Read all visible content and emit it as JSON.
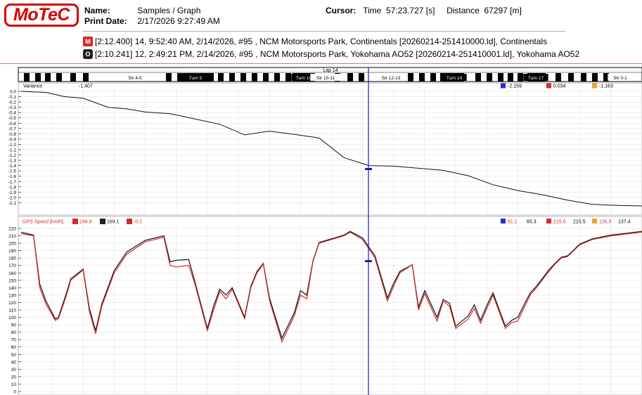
{
  "header": {
    "logo_text": "MoTeC",
    "name_label": "Name:",
    "name_value": "Samples / Graph",
    "print_label": "Print Date:",
    "print_value": "2/17/2026 9:27:49 AM",
    "cursor_label": "Cursor:",
    "time_label": "Time",
    "time_value": "57:23.727 [s]",
    "distance_label": "Distance",
    "distance_value": "67297 [m]"
  },
  "sessions": [
    {
      "badge": "M",
      "text": "[2:12.400] 14, 9:52:40 AM, 2/14/2026, #95 , NCM Motorsports Park, Continentals [20260214-251410000.ld], Continentals",
      "color": "#d42a2a"
    },
    {
      "badge": "O",
      "text": "[2:10.241] 12, 2:49:21 PM, 2/14/2026, #95 , NCM Motorsports Park, Yokohama AO52 [20260214-251410001.ld], Yokohama AO52",
      "color": "#222222"
    }
  ],
  "track": {
    "lap_label": "Lap 14",
    "segments": [
      "Str 4-5",
      "Turn 5",
      "Turn 10",
      "Str 10-11",
      "Str 12-13",
      "Turn 14",
      "Turn 17",
      "Str 0-1"
    ]
  },
  "colors": {
    "red": "#d42a2a",
    "black": "#111111",
    "cursor": "#1a1ac8",
    "grid": "#dcdcdc"
  },
  "chart_data": [
    {
      "type": "line",
      "channel": "Variance",
      "value_at_cursor": "-1.407",
      "readouts": {
        "min": "-2.159",
        "max": "0.034",
        "delta": "-1.163"
      },
      "ylim": [
        -2.2,
        0.0
      ],
      "yticks": [
        "0.0",
        "-0.1",
        "-0.2",
        "-0.3",
        "-0.4",
        "-0.5",
        "-0.6",
        "-0.7",
        "-0.8",
        "-0.9",
        "-1.0",
        "-1.1",
        "-1.2",
        "-1.3",
        "-1.4",
        "-1.5",
        "-1.6",
        "-1.7",
        "-1.8",
        "-1.9",
        "-2.0",
        "-2.1"
      ],
      "x": [
        0,
        4,
        7,
        10,
        14,
        17,
        20,
        24,
        28,
        32,
        36,
        40,
        44,
        48,
        52,
        56,
        60,
        64,
        68,
        72,
        76,
        80,
        84,
        88,
        92,
        96,
        100
      ],
      "y": [
        0.0,
        -0.02,
        -0.1,
        -0.13,
        -0.3,
        -0.33,
        -0.39,
        -0.42,
        -0.52,
        -0.62,
        -0.82,
        -0.75,
        -0.81,
        -0.88,
        -1.25,
        -1.4,
        -1.41,
        -1.45,
        -1.49,
        -1.59,
        -1.76,
        -1.87,
        -1.95,
        -2.05,
        -2.13,
        -2.15,
        -2.16
      ]
    },
    {
      "type": "line",
      "channel": "GPS Speed [km/h]",
      "legend": [
        {
          "badge": "M",
          "value": "168.9"
        },
        {
          "badge": "O",
          "value": "169.1"
        },
        {
          "badge": "Δ",
          "value": "-0.2"
        }
      ],
      "readouts": {
        "min_red": "61.1",
        "min_black": "65.3",
        "max_red": "215.0",
        "max_black": "215.5",
        "delta_red": "135.5",
        "delta_black": "137.4"
      },
      "ylim": [
        0,
        220
      ],
      "yticks": [
        "220",
        "210",
        "200",
        "190",
        "180",
        "170",
        "160",
        "150",
        "140",
        "130",
        "120",
        "110",
        "100",
        "90",
        "80",
        "70",
        "60",
        "50",
        "40",
        "30",
        "20",
        "10",
        "0"
      ],
      "x": [
        0,
        2,
        3,
        4,
        5.5,
        6,
        7,
        7.5,
        8,
        10,
        11,
        12,
        13,
        15,
        17,
        20,
        23,
        24,
        25,
        27,
        28,
        30,
        31,
        32,
        33,
        34,
        36,
        37,
        38,
        39,
        40,
        42,
        44,
        45,
        46,
        47,
        48,
        50,
        52,
        53,
        55,
        57,
        59,
        60,
        61,
        63,
        64,
        65,
        67,
        68,
        69,
        70,
        72,
        73,
        74,
        75,
        76,
        78,
        79,
        80,
        81,
        82,
        83,
        85,
        86,
        87,
        88,
        89,
        90,
        92,
        95,
        98,
        100
      ],
      "series": [
        {
          "name": "Continentals",
          "color": "#d42a2a",
          "values": [
            213,
            210,
            140,
            118,
            96,
            98,
            122,
            135,
            150,
            164,
            108,
            78,
            115,
            160,
            185,
            202,
            208,
            170,
            168,
            170,
            145,
            82,
            110,
            135,
            125,
            138,
            98,
            140,
            160,
            172,
            123,
            67,
            102,
            130,
            125,
            175,
            200,
            205,
            210,
            215,
            205,
            180,
            122,
            142,
            160,
            171,
            110,
            132,
            95,
            122,
            115,
            85,
            98,
            112,
            92,
            112,
            130,
            85,
            93,
            95,
            113,
            130,
            140,
            162,
            172,
            180,
            182,
            190,
            198,
            205,
            210,
            213,
            215
          ]
        },
        {
          "name": "Yokohama AO52",
          "color": "#111111",
          "values": [
            215,
            211,
            145,
            122,
            98,
            100,
            125,
            138,
            152,
            165,
            112,
            82,
            118,
            163,
            188,
            204,
            210,
            175,
            177,
            178,
            148,
            85,
            115,
            138,
            130,
            140,
            100,
            142,
            162,
            173,
            126,
            72,
            106,
            136,
            130,
            176,
            201,
            206,
            211,
            216,
            207,
            183,
            126,
            146,
            162,
            171,
            114,
            136,
            100,
            124,
            119,
            88,
            102,
            117,
            96,
            116,
            133,
            88,
            96,
            100,
            117,
            133,
            142,
            164,
            173,
            181,
            183,
            191,
            199,
            206,
            211,
            214,
            216
          ]
        }
      ]
    }
  ]
}
